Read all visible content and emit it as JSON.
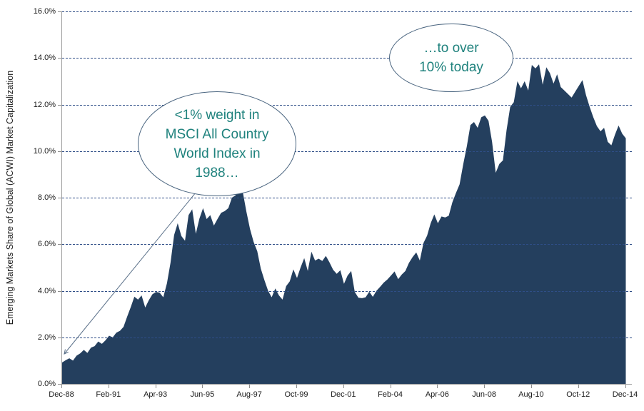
{
  "chart_data": {
    "type": "area",
    "title": "",
    "xlabel": "",
    "ylabel": "Emerging Markets Share of Global (ACWI) Market Capitalization",
    "ylim": [
      0,
      16
    ],
    "grid": "horizontal-dashed",
    "legend": "none",
    "y_ticks": [
      "0.0%",
      "2.0%",
      "4.0%",
      "6.0%",
      "8.0%",
      "10.0%",
      "12.0%",
      "14.0%",
      "16.0%"
    ],
    "x_ticks": [
      "Dec-88",
      "Feb-91",
      "Apr-93",
      "Jun-95",
      "Aug-97",
      "Oct-99",
      "Dec-01",
      "Feb-04",
      "Apr-06",
      "Jun-08",
      "Aug-10",
      "Oct-12",
      "Dec-14"
    ],
    "x_unit": "months since Dec-1988",
    "x_range_months": 312,
    "series": [
      {
        "name": "Emerging markets share of global (ACWI) market capitalization (%)",
        "points": [
          [
            0,
            0.92
          ],
          [
            2,
            1.02
          ],
          [
            4,
            1.1
          ],
          [
            6,
            1.0
          ],
          [
            8,
            1.21
          ],
          [
            10,
            1.31
          ],
          [
            12,
            1.46
          ],
          [
            14,
            1.33
          ],
          [
            16,
            1.56
          ],
          [
            18,
            1.62
          ],
          [
            20,
            1.82
          ],
          [
            22,
            1.72
          ],
          [
            24,
            1.87
          ],
          [
            26,
            2.07
          ],
          [
            28,
            2.0
          ],
          [
            30,
            2.2
          ],
          [
            32,
            2.28
          ],
          [
            34,
            2.45
          ],
          [
            36,
            2.89
          ],
          [
            38,
            3.3
          ],
          [
            40,
            3.75
          ],
          [
            42,
            3.62
          ],
          [
            44,
            3.8
          ],
          [
            46,
            3.28
          ],
          [
            48,
            3.6
          ],
          [
            50,
            3.85
          ],
          [
            52,
            3.95
          ],
          [
            54,
            3.92
          ],
          [
            56,
            3.72
          ],
          [
            58,
            4.32
          ],
          [
            60,
            5.2
          ],
          [
            62,
            6.4
          ],
          [
            64,
            6.9
          ],
          [
            66,
            6.35
          ],
          [
            68,
            6.15
          ],
          [
            70,
            7.25
          ],
          [
            72,
            7.5
          ],
          [
            74,
            6.45
          ],
          [
            76,
            7.1
          ],
          [
            78,
            7.55
          ],
          [
            80,
            7.08
          ],
          [
            82,
            7.25
          ],
          [
            84,
            6.8
          ],
          [
            86,
            7.08
          ],
          [
            88,
            7.35
          ],
          [
            90,
            7.42
          ],
          [
            92,
            7.55
          ],
          [
            94,
            8.0
          ],
          [
            96,
            8.1
          ],
          [
            98,
            8.48
          ],
          [
            100,
            8.25
          ],
          [
            102,
            7.4
          ],
          [
            104,
            6.65
          ],
          [
            106,
            6.1
          ],
          [
            108,
            5.7
          ],
          [
            110,
            4.95
          ],
          [
            112,
            4.45
          ],
          [
            114,
            4.0
          ],
          [
            116,
            3.72
          ],
          [
            118,
            4.1
          ],
          [
            120,
            3.8
          ],
          [
            122,
            3.62
          ],
          [
            124,
            4.2
          ],
          [
            126,
            4.4
          ],
          [
            128,
            4.92
          ],
          [
            130,
            4.55
          ],
          [
            132,
            5.0
          ],
          [
            134,
            5.4
          ],
          [
            136,
            4.85
          ],
          [
            138,
            5.68
          ],
          [
            140,
            5.3
          ],
          [
            142,
            5.38
          ],
          [
            144,
            5.28
          ],
          [
            146,
            5.5
          ],
          [
            148,
            5.22
          ],
          [
            150,
            4.9
          ],
          [
            152,
            4.73
          ],
          [
            154,
            4.88
          ],
          [
            156,
            4.3
          ],
          [
            158,
            4.65
          ],
          [
            160,
            4.85
          ],
          [
            162,
            3.95
          ],
          [
            164,
            3.7
          ],
          [
            166,
            3.68
          ],
          [
            168,
            3.72
          ],
          [
            170,
            3.96
          ],
          [
            172,
            3.74
          ],
          [
            174,
            4.0
          ],
          [
            176,
            4.17
          ],
          [
            178,
            4.35
          ],
          [
            180,
            4.48
          ],
          [
            182,
            4.65
          ],
          [
            184,
            4.83
          ],
          [
            186,
            4.5
          ],
          [
            188,
            4.7
          ],
          [
            190,
            4.85
          ],
          [
            192,
            5.2
          ],
          [
            194,
            5.45
          ],
          [
            196,
            5.65
          ],
          [
            198,
            5.3
          ],
          [
            200,
            6.05
          ],
          [
            202,
            6.37
          ],
          [
            204,
            6.9
          ],
          [
            206,
            7.28
          ],
          [
            208,
            6.9
          ],
          [
            210,
            7.19
          ],
          [
            212,
            7.15
          ],
          [
            214,
            7.22
          ],
          [
            216,
            7.8
          ],
          [
            218,
            8.2
          ],
          [
            220,
            8.57
          ],
          [
            222,
            9.43
          ],
          [
            224,
            10.2
          ],
          [
            226,
            11.12
          ],
          [
            228,
            11.25
          ],
          [
            230,
            11.0
          ],
          [
            232,
            11.45
          ],
          [
            234,
            11.53
          ],
          [
            236,
            11.3
          ],
          [
            238,
            10.4
          ],
          [
            240,
            9.07
          ],
          [
            242,
            9.45
          ],
          [
            244,
            9.6
          ],
          [
            246,
            10.9
          ],
          [
            248,
            11.9
          ],
          [
            250,
            12.1
          ],
          [
            252,
            13.0
          ],
          [
            254,
            12.7
          ],
          [
            256,
            13.0
          ],
          [
            258,
            12.6
          ],
          [
            260,
            13.7
          ],
          [
            262,
            13.55
          ],
          [
            264,
            13.73
          ],
          [
            266,
            12.85
          ],
          [
            268,
            13.6
          ],
          [
            270,
            13.35
          ],
          [
            272,
            12.9
          ],
          [
            274,
            13.3
          ],
          [
            276,
            12.75
          ],
          [
            278,
            12.6
          ],
          [
            280,
            12.45
          ],
          [
            282,
            12.3
          ],
          [
            284,
            12.55
          ],
          [
            286,
            12.8
          ],
          [
            288,
            13.05
          ],
          [
            290,
            12.4
          ],
          [
            292,
            11.9
          ],
          [
            294,
            11.45
          ],
          [
            296,
            11.07
          ],
          [
            298,
            10.85
          ],
          [
            300,
            11.0
          ],
          [
            302,
            10.4
          ],
          [
            304,
            10.25
          ],
          [
            306,
            10.7
          ],
          [
            308,
            11.1
          ],
          [
            310,
            10.75
          ],
          [
            312,
            10.55
          ]
        ]
      }
    ],
    "annotations": [
      {
        "shape": "oval",
        "lines": [
          "<1% weight in",
          "MSCI All Country",
          "World Index in",
          "1988…"
        ],
        "has_arrow_to_series_start": true
      },
      {
        "shape": "oval",
        "lines": [
          "…to over",
          "10% today"
        ],
        "has_arrow_to_series_start": false
      }
    ],
    "colors": {
      "area_fill": "#243F5E",
      "gridline": "#2F4E87",
      "axis_line": "#9B9B9B",
      "tick_text": "#1A1A1A",
      "annotation_text": "#1F827D",
      "annotation_border": "#49647F",
      "background": "#FFFFFF"
    }
  }
}
